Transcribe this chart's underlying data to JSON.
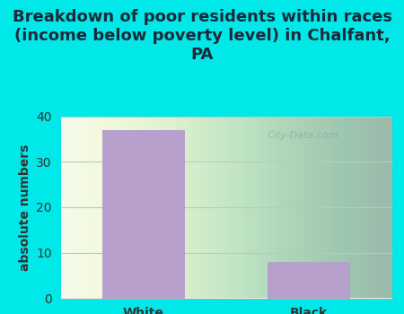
{
  "title": "Breakdown of poor residents within races\n(income below poverty level) in Chalfant,\nPA",
  "categories": [
    "White",
    "Black"
  ],
  "values": [
    37,
    8
  ],
  "bar_color": "#b8a0cc",
  "ylabel": "absolute numbers",
  "ylim": [
    0,
    40
  ],
  "yticks": [
    0,
    10,
    20,
    30,
    40
  ],
  "background_outer": "#00e8e8",
  "grid_color": "#b8ccb8",
  "watermark": "City-Data.com",
  "title_fontsize": 13,
  "title_color": "#1a2a3a",
  "axis_label_fontsize": 10,
  "tick_fontsize": 10,
  "bar_width": 0.5
}
